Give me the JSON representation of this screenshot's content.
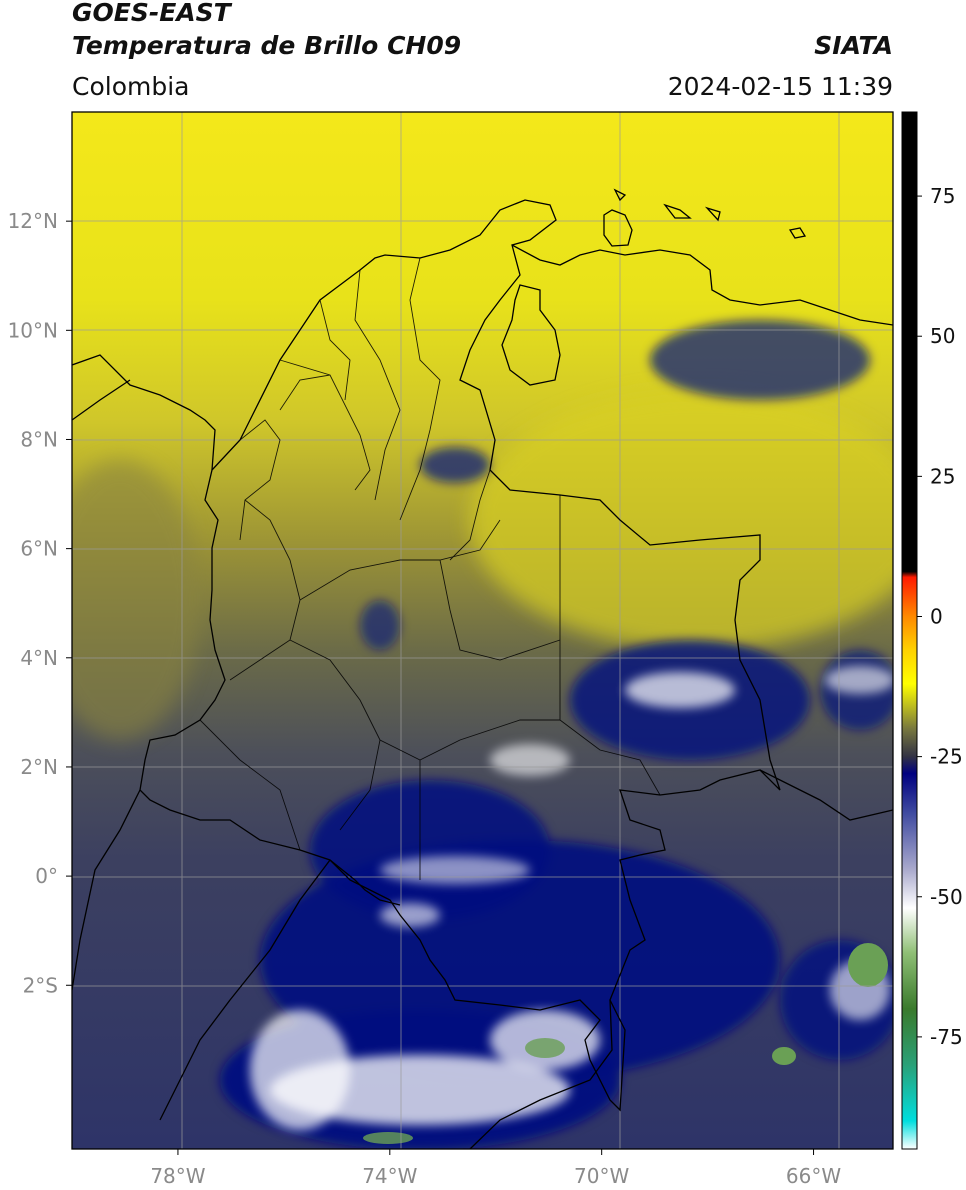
{
  "header": {
    "line1": "GOES-EAST",
    "line2": "Temperatura de Brillo CH09",
    "region": "Colombia",
    "agency": "SIATA",
    "datetime": "2024-02-15 11:39"
  },
  "map": {
    "lon_range": [
      -80,
      -64.5
    ],
    "lat_range": [
      -5,
      14
    ],
    "x_ticks": [
      {
        "lon": -78,
        "label": "78°W"
      },
      {
        "lon": -74,
        "label": "74°W"
      },
      {
        "lon": -70,
        "label": "70°W"
      },
      {
        "lon": -66,
        "label": "66°W"
      }
    ],
    "y_ticks": [
      {
        "lat": 12,
        "label": "12°N"
      },
      {
        "lat": 10,
        "label": "10°N"
      },
      {
        "lat": 8,
        "label": "8°N"
      },
      {
        "lat": 6,
        "label": "6°N"
      },
      {
        "lat": 4,
        "label": "4°N"
      },
      {
        "lat": 2,
        "label": "2°N"
      },
      {
        "lat": 0,
        "label": "0°"
      },
      {
        "lat": -2,
        "label": "2°S"
      }
    ]
  },
  "colorbar": {
    "range": [
      -95,
      90
    ],
    "ticks": [
      {
        "value": 75,
        "label": "75"
      },
      {
        "value": 50,
        "label": "50"
      },
      {
        "value": 25,
        "label": "25"
      },
      {
        "value": 0,
        "label": "0"
      },
      {
        "value": -25,
        "label": "-25"
      },
      {
        "value": -50,
        "label": "-50"
      },
      {
        "value": -75,
        "label": "-75"
      }
    ],
    "stops": [
      {
        "value": -95,
        "color": "#ffffff"
      },
      {
        "value": -90,
        "color": "#00dede"
      },
      {
        "value": -80,
        "color": "#2aa178"
      },
      {
        "value": -70,
        "color": "#3a7a2c"
      },
      {
        "value": -60,
        "color": "#8fbf75"
      },
      {
        "value": -52,
        "color": "#ffffff"
      },
      {
        "value": -45,
        "color": "#a8a8cc"
      },
      {
        "value": -35,
        "color": "#3f4aa0"
      },
      {
        "value": -28,
        "color": "#000080"
      },
      {
        "value": -25,
        "color": "#323244"
      },
      {
        "value": -20,
        "color": "#78783e"
      },
      {
        "value": -12,
        "color": "#ffff00"
      },
      {
        "value": -6,
        "color": "#ffd200"
      },
      {
        "value": 0,
        "color": "#ff8a00"
      },
      {
        "value": 7,
        "color": "#ff1a00"
      },
      {
        "value": 8,
        "color": "#000000"
      },
      {
        "value": 90,
        "color": "#000000"
      }
    ]
  }
}
